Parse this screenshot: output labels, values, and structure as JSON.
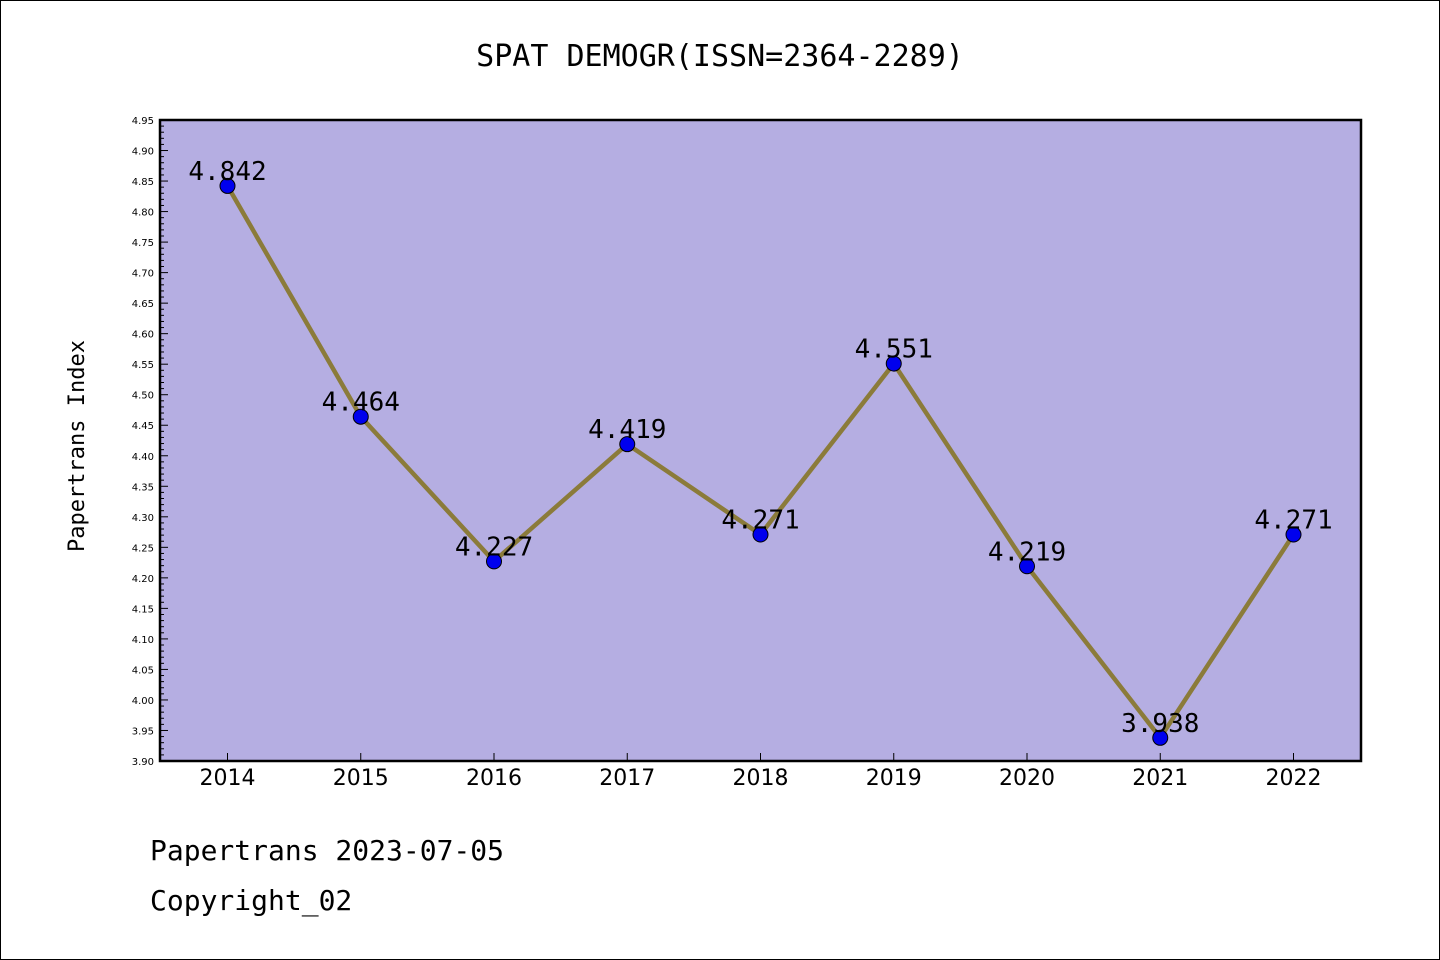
{
  "chart_data": {
    "type": "line",
    "title": "SPAT DEMOGR(ISSN=2364-2289)",
    "xlabel": "",
    "ylabel": "Papertrans Index",
    "categories": [
      "2014",
      "2015",
      "2016",
      "2017",
      "2018",
      "2019",
      "2020",
      "2021",
      "2022"
    ],
    "values": [
      4.842,
      4.464,
      4.227,
      4.419,
      4.271,
      4.551,
      4.219,
      3.938,
      4.271
    ],
    "value_labels": [
      "4.842",
      "4.464",
      "4.227",
      "4.419",
      "4.271",
      "4.551",
      "4.219",
      "3.938",
      "4.271"
    ],
    "ylim": [
      3.9,
      4.95
    ],
    "yticks": [
      "3.90",
      "3.95",
      "4.00",
      "4.05",
      "4.10",
      "4.15",
      "4.20",
      "4.25",
      "4.30",
      "4.35",
      "4.40",
      "4.45",
      "4.50",
      "4.55",
      "4.60",
      "4.65",
      "4.70",
      "4.75",
      "4.80",
      "4.85",
      "4.90",
      "4.95"
    ],
    "grid": false,
    "colors": {
      "plot_bg": "#b5aee2",
      "line": "#8b7b3a",
      "marker": "#0000ee"
    }
  },
  "footer": {
    "line1": "Papertrans 2023-07-05",
    "line2": "Copyright_02"
  }
}
